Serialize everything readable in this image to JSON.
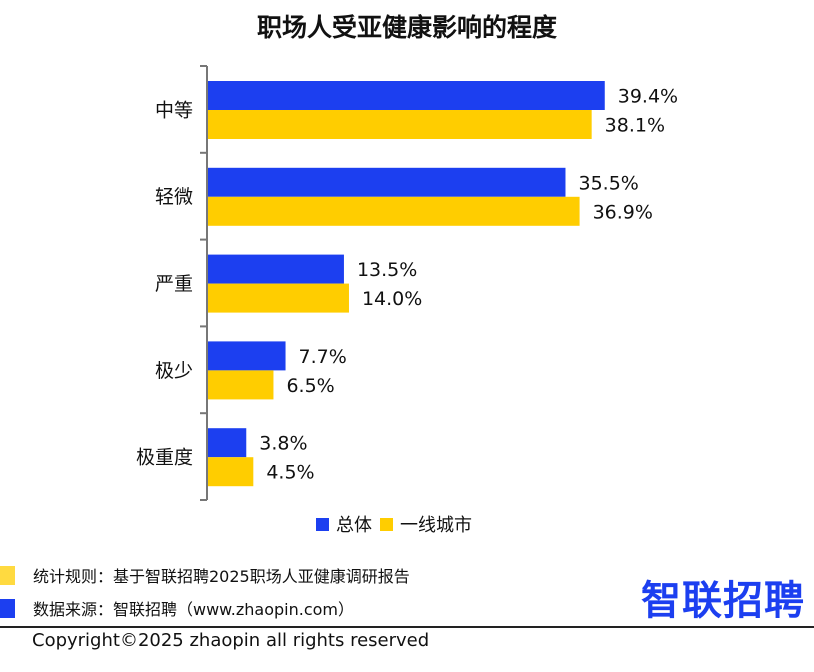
{
  "colors": {
    "series_total": "#1c3ff0",
    "series_tier1": "#ffcd00",
    "axis": "#777777",
    "logo": "#1c3ff0",
    "footnote_marker_1": "#ffcd00",
    "footnote_marker_2": "#1c3ff0"
  },
  "chart_data": {
    "type": "bar",
    "orientation": "horizontal",
    "title": "职场人受亚健康影响的程度",
    "categories": [
      "中等",
      "轻微",
      "严重",
      "极少",
      "极重度"
    ],
    "series": [
      {
        "name": "总体",
        "values": [
          39.4,
          35.5,
          13.5,
          7.7,
          3.8
        ],
        "labels": [
          "39.4%",
          "35.5%",
          "13.5%",
          "7.7%",
          "3.8%"
        ]
      },
      {
        "name": "一线城市",
        "values": [
          38.1,
          36.9,
          14.0,
          6.5,
          4.5
        ],
        "labels": [
          "38.1%",
          "36.9%",
          "14.0%",
          "6.5%",
          "4.5%"
        ]
      }
    ],
    "xlim": [
      0,
      50
    ],
    "legend_position": "bottom",
    "grid": false
  },
  "footnotes": {
    "rule": "统计规则：基于智联招聘2025职场人亚健康调研报告",
    "source": "数据来源：智联招聘（www.zhaopin.com）"
  },
  "logo_text": "智联招聘",
  "copyright": "Copyright©2025 zhaopin all rights reserved"
}
